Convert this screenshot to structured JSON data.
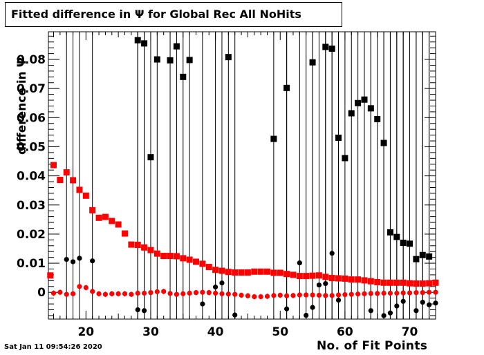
{
  "title": "Fitted difference in  Ψ  for Global Rec All NoHits",
  "footer_date": "Sat Jan 11 09:54:26 2020",
  "chart_data": {
    "type": "scatter",
    "title": "Fitted difference in  Ψ  for Global Rec All NoHits",
    "xlabel": "No. of Fit Points",
    "ylabel": "difference in  Ψ",
    "xlim": [
      14.2,
      74.0
    ],
    "ylim": [
      -0.0092,
      0.0895
    ],
    "x_ticks": [
      20,
      30,
      40,
      50,
      60,
      70
    ],
    "y_ticks": [
      0,
      0.01,
      0.02,
      0.03,
      0.04,
      0.05,
      0.06,
      0.07,
      0.08
    ],
    "grid": false,
    "series": [
      {
        "marker": "square",
        "color": "#ff0000",
        "points": [
          [
            14.5,
            0.0058
          ],
          [
            15,
            0.0437
          ],
          [
            16,
            0.0386
          ],
          [
            17,
            0.0412
          ],
          [
            18,
            0.0385
          ],
          [
            19,
            0.0352
          ],
          [
            20,
            0.0332
          ],
          [
            21,
            0.0282
          ],
          [
            22,
            0.0256
          ],
          [
            23,
            0.0259
          ],
          [
            24,
            0.0245
          ],
          [
            25,
            0.0233
          ],
          [
            26,
            0.0202
          ],
          [
            27,
            0.0164
          ],
          [
            28,
            0.0163
          ],
          [
            29,
            0.0154
          ],
          [
            30,
            0.0145
          ],
          [
            31,
            0.0133
          ],
          [
            32,
            0.0125
          ],
          [
            33,
            0.0125
          ],
          [
            34,
            0.0124
          ],
          [
            35,
            0.0117
          ],
          [
            36,
            0.0112
          ],
          [
            37,
            0.0105
          ],
          [
            38,
            0.0098
          ],
          [
            39,
            0.0087
          ],
          [
            40,
            0.0077
          ],
          [
            41,
            0.0074
          ],
          [
            42,
            0.007
          ],
          [
            43,
            0.0068
          ],
          [
            44,
            0.0068
          ],
          [
            45,
            0.0068
          ],
          [
            46,
            0.0071
          ],
          [
            47,
            0.0071
          ],
          [
            48,
            0.0071
          ],
          [
            49,
            0.0067
          ],
          [
            50,
            0.0067
          ],
          [
            51,
            0.0063
          ],
          [
            52,
            0.006
          ],
          [
            53,
            0.0056
          ],
          [
            54,
            0.0056
          ],
          [
            55,
            0.0057
          ],
          [
            56,
            0.0058
          ],
          [
            57,
            0.0053
          ],
          [
            58,
            0.0049
          ],
          [
            59,
            0.0048
          ],
          [
            60,
            0.0047
          ],
          [
            61,
            0.0044
          ],
          [
            62,
            0.0044
          ],
          [
            63,
            0.0041
          ],
          [
            64,
            0.0038
          ],
          [
            65,
            0.0035
          ],
          [
            66,
            0.0033
          ],
          [
            67,
            0.0033
          ],
          [
            68,
            0.0033
          ],
          [
            69,
            0.0033
          ],
          [
            70,
            0.0031
          ],
          [
            71,
            0.003
          ],
          [
            72,
            0.003
          ],
          [
            73,
            0.0031
          ],
          [
            74,
            0.0033
          ]
        ]
      },
      {
        "marker": "circle",
        "color": "#ff0000",
        "points": [
          [
            15,
            -0.0003
          ],
          [
            16,
            0.0
          ],
          [
            17,
            -0.0007
          ],
          [
            18,
            -0.0005
          ],
          [
            19,
            0.002
          ],
          [
            20,
            0.0016
          ],
          [
            21,
            0.0003
          ],
          [
            22,
            -0.0005
          ],
          [
            23,
            -0.0007
          ],
          [
            24,
            -0.0005
          ],
          [
            25,
            -0.0005
          ],
          [
            26,
            -0.0005
          ],
          [
            27,
            -0.0007
          ],
          [
            28,
            -0.0003
          ],
          [
            29,
            -0.0003
          ],
          [
            30,
            -0.0001
          ],
          [
            31,
            0.0002
          ],
          [
            32,
            0.0003
          ],
          [
            33,
            -0.0004
          ],
          [
            34,
            -0.0007
          ],
          [
            35,
            -0.0005
          ],
          [
            36,
            -0.0003
          ],
          [
            37,
            -0.0001
          ],
          [
            38,
            0.0
          ],
          [
            39,
            -0.0001
          ],
          [
            40,
            -0.0003
          ],
          [
            41,
            -0.0005
          ],
          [
            42,
            -0.0006
          ],
          [
            43,
            -0.0007
          ],
          [
            44,
            -0.001
          ],
          [
            45,
            -0.0012
          ],
          [
            46,
            -0.0015
          ],
          [
            47,
            -0.0015
          ],
          [
            48,
            -0.0014
          ],
          [
            49,
            -0.0011
          ],
          [
            50,
            -0.001
          ],
          [
            51,
            -0.0012
          ],
          [
            52,
            -0.0011
          ],
          [
            53,
            -0.0009
          ],
          [
            54,
            -0.0009
          ],
          [
            55,
            -0.0009
          ],
          [
            56,
            -0.001
          ],
          [
            57,
            -0.0011
          ],
          [
            58,
            -0.0011
          ],
          [
            59,
            -0.0009
          ],
          [
            60,
            -0.0008
          ],
          [
            61,
            -0.0007
          ],
          [
            62,
            -0.0006
          ],
          [
            63,
            -0.0005
          ],
          [
            64,
            -0.0004
          ],
          [
            65,
            -0.0004
          ],
          [
            66,
            -0.0003
          ],
          [
            67,
            -0.0003
          ],
          [
            68,
            -0.0003
          ],
          [
            69,
            -0.0002
          ],
          [
            70,
            -0.0002
          ],
          [
            71,
            -0.0001
          ],
          [
            72,
            -0.0001
          ],
          [
            73,
            0.0
          ],
          [
            74,
            0.0
          ]
        ]
      },
      {
        "marker": "square",
        "color": "#000000",
        "points": [
          [
            28,
            0.0866
          ],
          [
            29,
            0.0855
          ],
          [
            30,
            0.0464
          ],
          [
            31,
            0.08
          ],
          [
            33,
            0.0797
          ],
          [
            34,
            0.0845
          ],
          [
            35,
            0.074
          ],
          [
            36,
            0.0798
          ],
          [
            42,
            0.0808
          ],
          [
            49,
            0.0527
          ],
          [
            51,
            0.0702
          ],
          [
            55,
            0.079
          ],
          [
            57,
            0.0843
          ],
          [
            58,
            0.0837
          ],
          [
            59,
            0.0531
          ],
          [
            60,
            0.0461
          ],
          [
            61,
            0.0615
          ],
          [
            62,
            0.065
          ],
          [
            63,
            0.0662
          ],
          [
            64,
            0.0632
          ],
          [
            65,
            0.0595
          ],
          [
            66,
            0.0513
          ],
          [
            67,
            0.0206
          ],
          [
            68,
            0.019
          ],
          [
            69,
            0.017
          ],
          [
            70,
            0.0167
          ],
          [
            71,
            0.0114
          ],
          [
            72,
            0.0128
          ],
          [
            73,
            0.0123
          ]
        ]
      },
      {
        "marker": "circle",
        "color": "#000000",
        "points": [
          [
            17,
            0.0113
          ],
          [
            18,
            0.0105
          ],
          [
            19,
            0.0117
          ],
          [
            21,
            0.0108
          ],
          [
            28,
            -0.006
          ],
          [
            29,
            -0.0063
          ],
          [
            38,
            -0.004
          ],
          [
            40,
            0.0018
          ],
          [
            41,
            0.0032
          ],
          [
            43,
            -0.0078
          ],
          [
            51,
            -0.0057
          ],
          [
            53,
            0.0101
          ],
          [
            54,
            -0.0079
          ],
          [
            55,
            -0.0052
          ],
          [
            56,
            0.0025
          ],
          [
            57,
            0.003
          ],
          [
            58,
            0.0134
          ],
          [
            59,
            -0.0027
          ],
          [
            64,
            -0.0063
          ],
          [
            66,
            -0.008
          ],
          [
            67,
            -0.0071
          ],
          [
            68,
            -0.0047
          ],
          [
            69,
            -0.0031
          ],
          [
            71,
            -0.0063
          ],
          [
            72,
            -0.0034
          ],
          [
            73,
            -0.0043
          ],
          [
            74,
            -0.0037
          ]
        ]
      }
    ]
  }
}
